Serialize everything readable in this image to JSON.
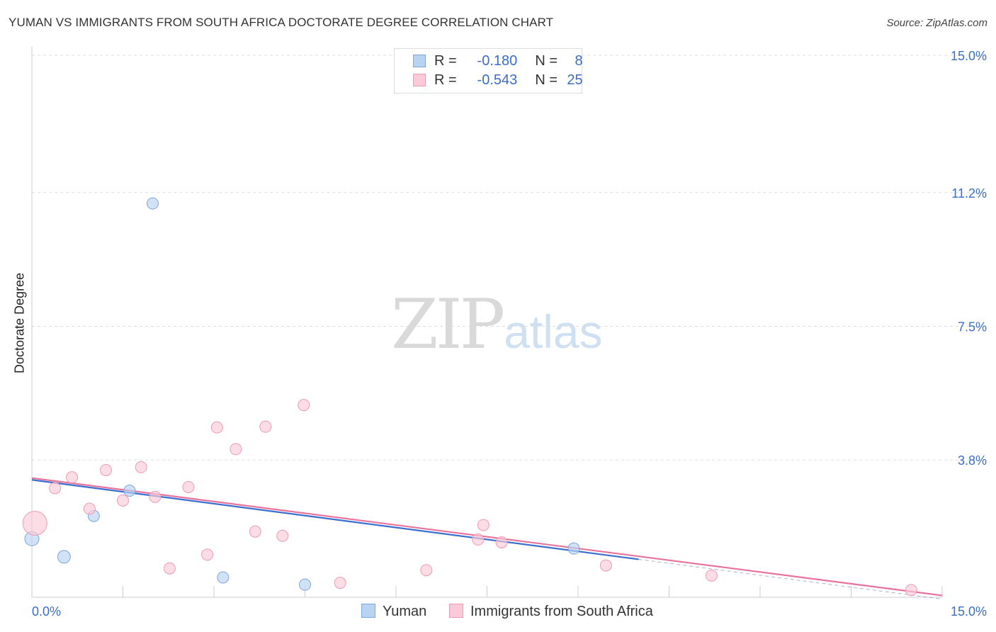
{
  "title": "YUMAN VS IMMIGRANTS FROM SOUTH AFRICA DOCTORATE DEGREE CORRELATION CHART",
  "source": "Source: ZipAtlas.com",
  "watermark": {
    "zip": "ZIP",
    "atlas": "atlas"
  },
  "legend": {
    "r_label": "R =",
    "n_label": "N =",
    "rows": [
      {
        "r": "-0.180",
        "n": "8"
      },
      {
        "r": "-0.543",
        "n": "25"
      }
    ]
  },
  "colors": {
    "yuman_fill": "#b9d3f3",
    "yuman_stroke": "#7ea6de",
    "yuman_line": "#3a6fd0",
    "sa_fill": "#fbc9d7",
    "sa_stroke": "#ef9ab4",
    "sa_line": "#e8729a",
    "axis_text": "#3b6ec8",
    "grid": "#dddddd"
  },
  "chart_data": {
    "type": "scatter",
    "title": "YUMAN VS IMMIGRANTS FROM SOUTH AFRICA DOCTORATE DEGREE CORRELATION CHART",
    "xlabel": "",
    "ylabel": "Doctorate Degree",
    "xlim": [
      0,
      15
    ],
    "ylim": [
      0,
      15
    ],
    "x_tick_labels": [
      "0.0%",
      "15.0%"
    ],
    "y_ticks": [
      3.8,
      7.5,
      11.2,
      15.0
    ],
    "y_tick_labels": [
      "3.8%",
      "7.5%",
      "11.2%",
      "15.0%"
    ],
    "grid": true,
    "series": [
      {
        "name": "Yuman",
        "r": -0.18,
        "n": 8,
        "points": [
          {
            "x": 0.0,
            "y": 1.62,
            "size": 10
          },
          {
            "x": 0.53,
            "y": 1.12,
            "size": 9
          },
          {
            "x": 1.02,
            "y": 2.25,
            "size": 8
          },
          {
            "x": 1.61,
            "y": 2.95,
            "size": 8
          },
          {
            "x": 1.99,
            "y": 10.9,
            "size": 8
          },
          {
            "x": 3.15,
            "y": 0.55,
            "size": 8
          },
          {
            "x": 4.5,
            "y": 0.35,
            "size": 8
          },
          {
            "x": 8.93,
            "y": 1.35,
            "size": 8
          }
        ],
        "trend": {
          "x": [
            0.0,
            10.0
          ],
          "y": [
            3.25,
            1.05
          ]
        }
      },
      {
        "name": "Immigrants from South Africa",
        "r": -0.543,
        "n": 25,
        "points": [
          {
            "x": 0.05,
            "y": 2.05,
            "size": 17
          },
          {
            "x": 0.38,
            "y": 3.02,
            "size": 8
          },
          {
            "x": 0.66,
            "y": 3.32,
            "size": 8
          },
          {
            "x": 0.95,
            "y": 2.45,
            "size": 8
          },
          {
            "x": 1.22,
            "y": 3.52,
            "size": 8
          },
          {
            "x": 1.5,
            "y": 2.68,
            "size": 8
          },
          {
            "x": 1.8,
            "y": 3.6,
            "size": 8
          },
          {
            "x": 2.03,
            "y": 2.78,
            "size": 8
          },
          {
            "x": 2.27,
            "y": 0.8,
            "size": 8
          },
          {
            "x": 2.58,
            "y": 3.05,
            "size": 8
          },
          {
            "x": 2.89,
            "y": 1.18,
            "size": 8
          },
          {
            "x": 3.05,
            "y": 4.7,
            "size": 8
          },
          {
            "x": 3.36,
            "y": 4.1,
            "size": 8
          },
          {
            "x": 3.68,
            "y": 1.82,
            "size": 8
          },
          {
            "x": 3.85,
            "y": 4.72,
            "size": 8
          },
          {
            "x": 4.13,
            "y": 1.7,
            "size": 8
          },
          {
            "x": 4.48,
            "y": 5.32,
            "size": 8
          },
          {
            "x": 5.08,
            "y": 0.4,
            "size": 8
          },
          {
            "x": 6.5,
            "y": 0.75,
            "size": 8
          },
          {
            "x": 7.35,
            "y": 1.6,
            "size": 8
          },
          {
            "x": 7.44,
            "y": 2.0,
            "size": 8
          },
          {
            "x": 7.74,
            "y": 1.52,
            "size": 8
          },
          {
            "x": 9.46,
            "y": 0.88,
            "size": 8
          },
          {
            "x": 11.2,
            "y": 0.6,
            "size": 8
          },
          {
            "x": 14.49,
            "y": 0.2,
            "size": 8
          }
        ],
        "trend": {
          "x": [
            0.0,
            15.0
          ],
          "y": [
            3.3,
            0.05
          ]
        }
      }
    ]
  }
}
